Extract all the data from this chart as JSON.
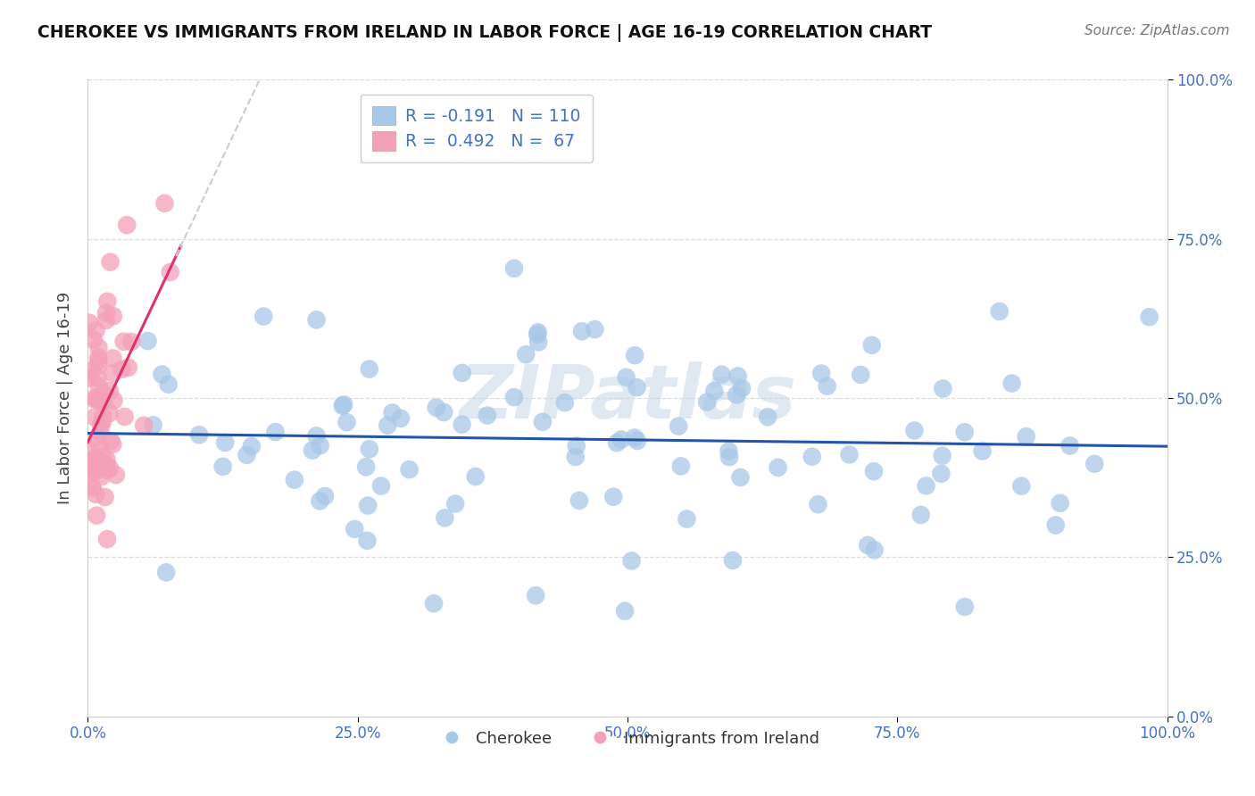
{
  "title": "CHEROKEE VS IMMIGRANTS FROM IRELAND IN LABOR FORCE | AGE 16-19 CORRELATION CHART",
  "source": "Source: ZipAtlas.com",
  "ylabel": "In Labor Force | Age 16-19",
  "watermark": "ZIPatlas",
  "bottom_legend": [
    "Cherokee",
    "Immigrants from Ireland"
  ],
  "blue_color": "#a8c8e8",
  "pink_color": "#f4a0b8",
  "blue_line_color": "#2255aa",
  "pink_line_color": "#e03070",
  "pink_line_dashed_color": "#cccccc",
  "r_blue": -0.191,
  "n_blue": 110,
  "r_pink": 0.492,
  "n_pink": 67,
  "blue_seed": 42,
  "pink_seed": 123,
  "xlim": [
    0.0,
    1.0
  ],
  "ylim": [
    0.0,
    1.0
  ],
  "yticks": [
    0.0,
    0.25,
    0.5,
    0.75,
    1.0
  ],
  "ytick_labels": [
    "0.0%",
    "25.0%",
    "50.0%",
    "75.0%",
    "100.0%"
  ],
  "xticks": [
    0.0,
    0.25,
    0.5,
    0.75,
    1.0
  ],
  "xtick_labels": [
    "0.0%",
    "25.0%",
    "50.0%",
    "75.0%",
    "100.0%"
  ],
  "grid_color": "#dddddd",
  "background_color": "#ffffff",
  "title_color": "#111111",
  "source_color": "#777777",
  "axis_label_color": "#444444",
  "tick_color": "#4472c4",
  "legend_text_color": "#4472c4",
  "legend_r_values": [
    "R = -0.191",
    "R =  0.492"
  ],
  "legend_n_values": [
    "N = 110",
    "N =  67"
  ],
  "legend_colors": [
    "#a8c8e8",
    "#f4a0b8"
  ]
}
